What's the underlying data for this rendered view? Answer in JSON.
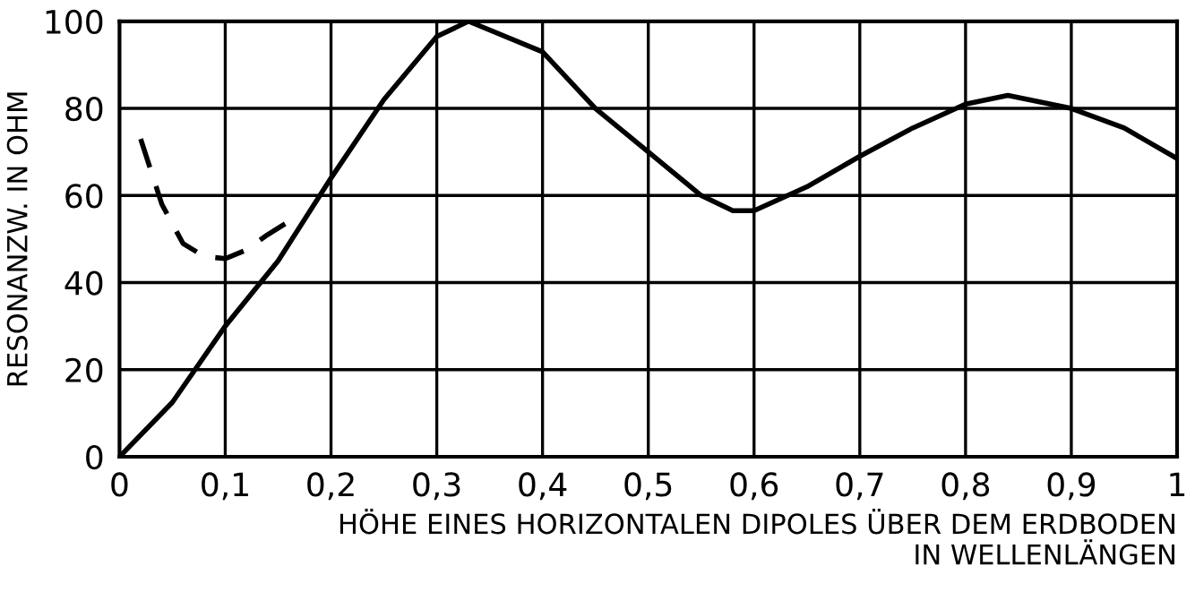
{
  "chart_data": {
    "type": "line",
    "xlabel": "HÖHE EINES HORIZONTALEN DIPOLES ÜBER DEM ERDBODEN\nIN WELLENLÄNGEN",
    "ylabel": "RESONANZW. IN OHM",
    "series": [
      {
        "color": "#000000",
        "line_style": "solid",
        "x": [
          0,
          0.05,
          0.1,
          0.15,
          0.2,
          0.25,
          0.3,
          0.33,
          0.4,
          0.45,
          0.5,
          0.55,
          0.58,
          0.6,
          0.65,
          0.7,
          0.75,
          0.8,
          0.84,
          0.9,
          0.95,
          1.0
        ],
        "values": [
          0,
          12.5,
          30,
          45,
          64,
          82,
          96.5,
          100,
          93,
          80,
          70,
          60,
          56.5,
          56.5,
          62,
          69,
          75.5,
          81,
          83,
          80,
          75.5,
          68.5
        ]
      },
      {
        "color": "#000000",
        "line_style": "dashed",
        "x": [
          0.02,
          0.04,
          0.06,
          0.08,
          0.1,
          0.12,
          0.14,
          0.16
        ],
        "values": [
          73,
          58,
          49,
          46,
          45.5,
          47.5,
          51,
          54
        ]
      }
    ],
    "xlim": [
      0,
      1
    ],
    "ylim": [
      0,
      100
    ],
    "xticks": [
      0,
      {
        "value": 0.1,
        "label": "0,1"
      },
      {
        "value": 0.2,
        "label": "0,2"
      },
      {
        "value": 0.3,
        "label": "0,3"
      },
      {
        "value": 0.4,
        "label": "0,4"
      },
      {
        "value": 0.5,
        "label": "0,5"
      },
      {
        "value": 0.6,
        "label": "0,6"
      },
      {
        "value": 0.7,
        "label": "0,7"
      },
      {
        "value": 0.8,
        "label": "0,8"
      },
      {
        "value": 0.9,
        "label": "0,9"
      },
      1
    ],
    "yticks": [
      0,
      20,
      40,
      60,
      80,
      100
    ],
    "grid": true,
    "marker": "none"
  }
}
